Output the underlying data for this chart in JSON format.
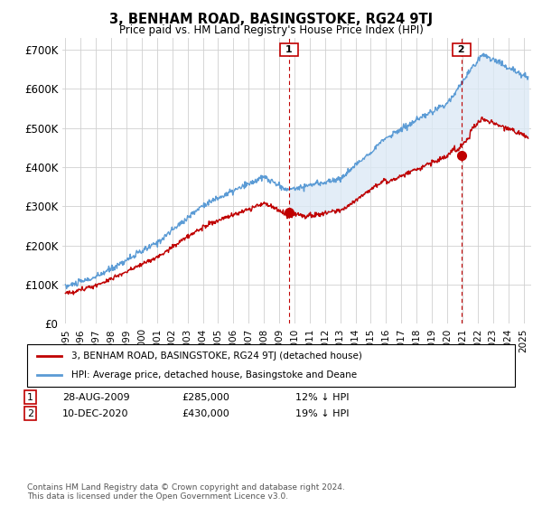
{
  "title": "3, BENHAM ROAD, BASINGSTOKE, RG24 9TJ",
  "subtitle": "Price paid vs. HM Land Registry's House Price Index (HPI)",
  "ylabel_ticks": [
    "£0",
    "£100K",
    "£200K",
    "£300K",
    "£400K",
    "£500K",
    "£600K",
    "£700K"
  ],
  "ytick_values": [
    0,
    100000,
    200000,
    300000,
    400000,
    500000,
    600000,
    700000
  ],
  "ylim": [
    0,
    730000
  ],
  "xlim_start": 1994.8,
  "xlim_end": 2025.5,
  "sale1_x": 2009.65,
  "sale1_y": 285000,
  "sale2_x": 2020.94,
  "sale2_y": 430000,
  "hpi_color": "#5b9bd5",
  "hpi_fill_color": "#dce9f5",
  "price_color": "#c00000",
  "dashed_line_color": "#c00000",
  "grid_color": "#d0d0d0",
  "background_color": "#ffffff",
  "legend_label_red": "3, BENHAM ROAD, BASINGSTOKE, RG24 9TJ (detached house)",
  "legend_label_blue": "HPI: Average price, detached house, Basingstoke and Deane",
  "note1_label": "1",
  "note1_date": "28-AUG-2009",
  "note1_price": "£285,000",
  "note1_change": "12% ↓ HPI",
  "note2_label": "2",
  "note2_date": "10-DEC-2020",
  "note2_price": "£430,000",
  "note2_change": "19% ↓ HPI",
  "footer": "Contains HM Land Registry data © Crown copyright and database right 2024.\nThis data is licensed under the Open Government Licence v3.0."
}
